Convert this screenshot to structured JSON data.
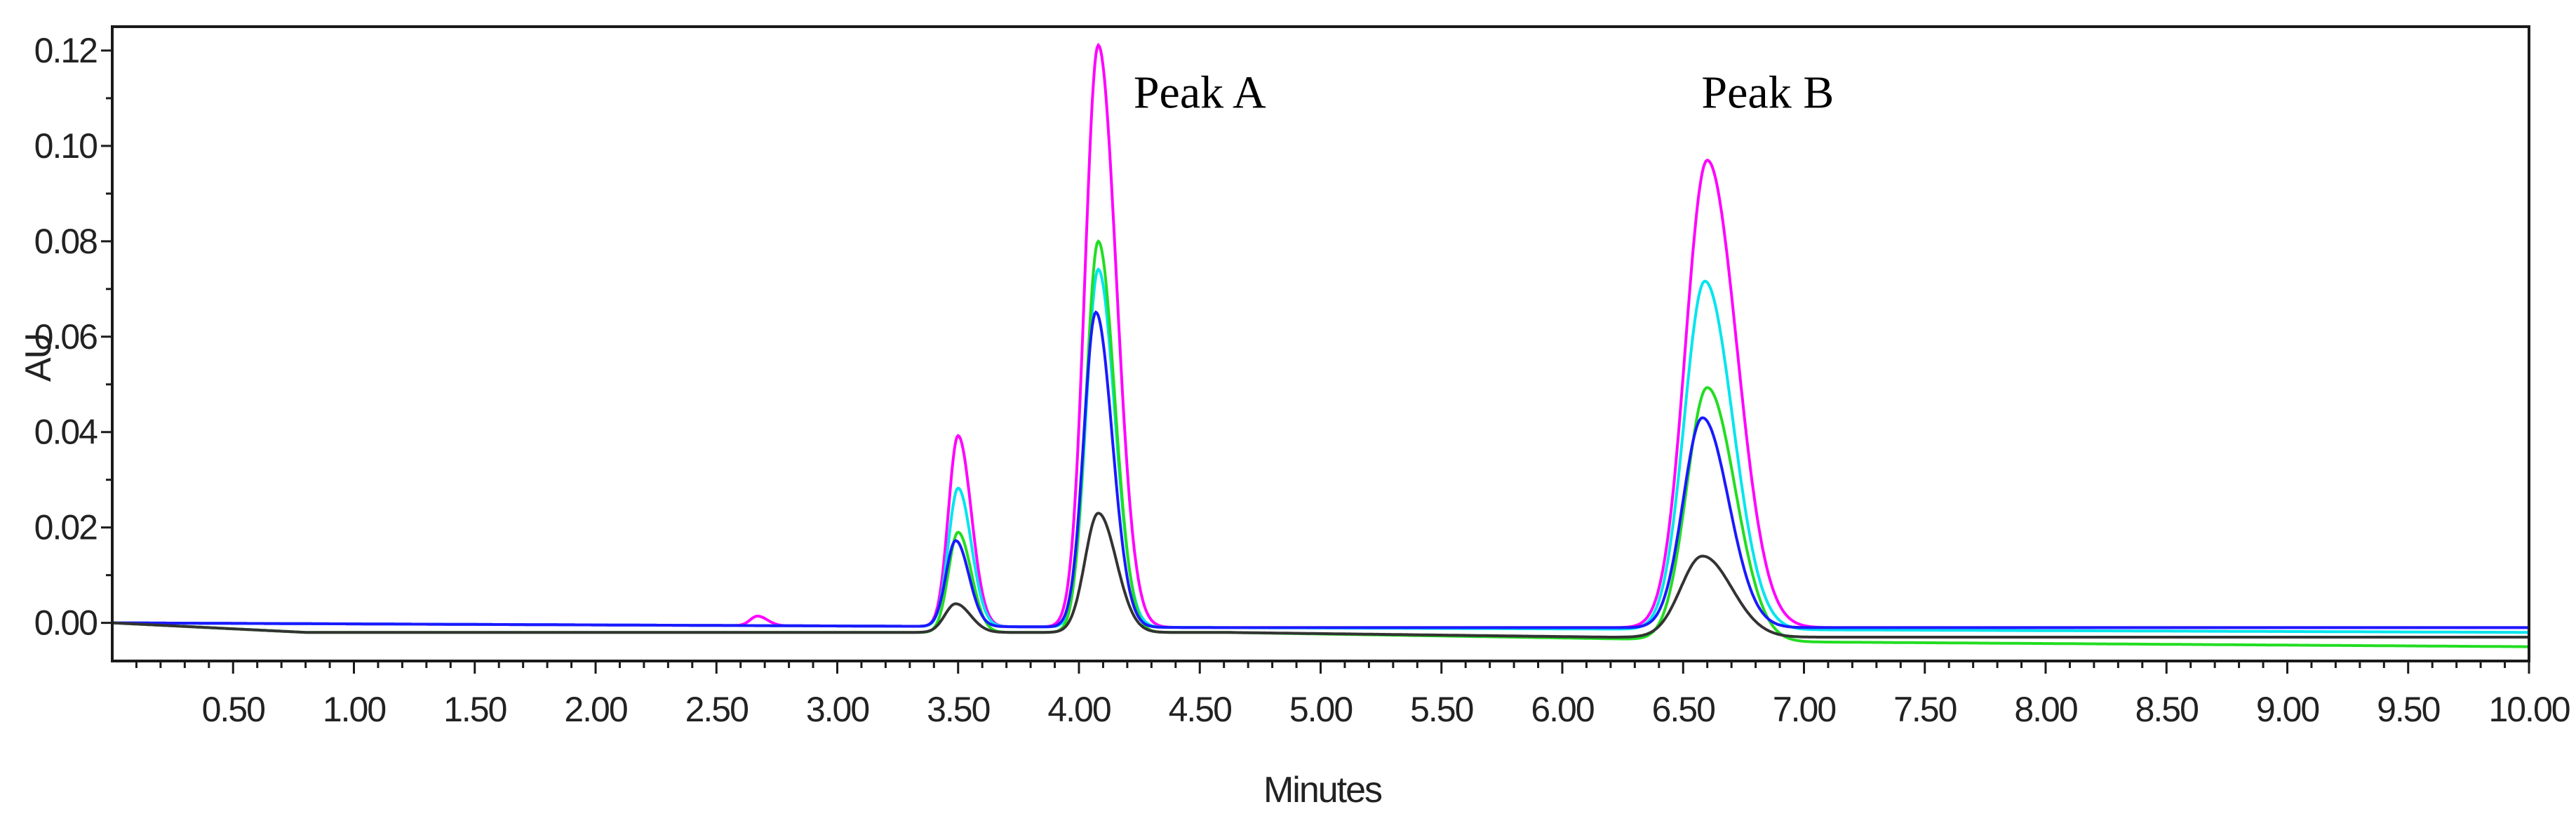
{
  "chart_data": {
    "type": "line",
    "title": "",
    "xlabel": "Minutes",
    "ylabel": "AU",
    "xlim": [
      0.0,
      10.0
    ],
    "ylim": [
      -0.008,
      0.125
    ],
    "x_ticks": [
      "0.50",
      "1.00",
      "1.50",
      "2.00",
      "2.50",
      "3.00",
      "3.50",
      "4.00",
      "4.50",
      "5.00",
      "5.50",
      "6.00",
      "6.50",
      "7.00",
      "7.50",
      "8.00",
      "8.50",
      "9.00",
      "9.50",
      "10.00"
    ],
    "y_ticks": [
      "0.00",
      "0.02",
      "0.04",
      "0.06",
      "0.08",
      "0.10",
      "0.12"
    ],
    "grid": false,
    "annotations": [
      {
        "text": "Peak A",
        "x": 4.5,
        "y": 0.108
      },
      {
        "text": "Peak B",
        "x": 6.85,
        "y": 0.108
      }
    ],
    "series": [
      {
        "color": "#ff00ff",
        "baseline": [
          [
            0,
            0
          ],
          [
            4.6,
            -0.001
          ],
          [
            10,
            -0.001
          ]
        ],
        "peaks": [
          {
            "x": 2.67,
            "h": 0.002,
            "w": 0.03
          },
          {
            "x": 3.5,
            "h": 0.04,
            "w": 0.04
          },
          {
            "x": 4.08,
            "h": 0.122,
            "w": 0.055
          },
          {
            "x": 6.6,
            "h": 0.098,
            "w": 0.09
          }
        ],
        "values_at": {
          "x": [
            3.5,
            4.08,
            6.6
          ],
          "y": [
            0.04,
            0.121,
            0.097
          ]
        }
      },
      {
        "color": "#00e5ee",
        "baseline": [
          [
            0,
            0
          ],
          [
            4.6,
            -0.001
          ],
          [
            10,
            -0.002
          ]
        ],
        "peaks": [
          {
            "x": 3.5,
            "h": 0.029,
            "w": 0.04
          },
          {
            "x": 4.08,
            "h": 0.075,
            "w": 0.05
          },
          {
            "x": 6.59,
            "h": 0.073,
            "w": 0.085
          }
        ],
        "values_at": {
          "x": [
            3.5,
            4.08,
            6.59
          ],
          "y": [
            0.028,
            0.074,
            0.072
          ]
        }
      },
      {
        "color": "#22dd22",
        "baseline": [
          [
            0,
            0
          ],
          [
            0.8,
            -0.002
          ],
          [
            4.6,
            -0.002
          ],
          [
            7,
            -0.004
          ],
          [
            10,
            -0.005
          ]
        ],
        "peaks": [
          {
            "x": 3.5,
            "h": 0.021,
            "w": 0.04
          },
          {
            "x": 4.08,
            "h": 0.082,
            "w": 0.05
          },
          {
            "x": 6.6,
            "h": 0.053,
            "w": 0.085
          }
        ],
        "values_at": {
          "x": [
            3.5,
            4.08,
            6.6
          ],
          "y": [
            0.02,
            0.08,
            0.049
          ]
        }
      },
      {
        "color": "#1a1aff",
        "baseline": [
          [
            0,
            0
          ],
          [
            4.6,
            -0.001
          ],
          [
            10,
            -0.001
          ]
        ],
        "peaks": [
          {
            "x": 3.49,
            "h": 0.018,
            "w": 0.04
          },
          {
            "x": 4.07,
            "h": 0.066,
            "w": 0.05
          },
          {
            "x": 6.58,
            "h": 0.044,
            "w": 0.08
          }
        ],
        "values_at": {
          "x": [
            3.49,
            4.07,
            6.58
          ],
          "y": [
            0.017,
            0.065,
            0.043
          ]
        }
      },
      {
        "color": "#333333",
        "baseline": [
          [
            0,
            0
          ],
          [
            0.8,
            -0.002
          ],
          [
            4.6,
            -0.002
          ],
          [
            6.2,
            -0.003
          ],
          [
            10,
            -0.003
          ]
        ],
        "peaks": [
          {
            "x": 3.49,
            "h": 0.006,
            "w": 0.045
          },
          {
            "x": 4.08,
            "h": 0.025,
            "w": 0.055
          },
          {
            "x": 6.58,
            "h": 0.017,
            "w": 0.09
          }
        ],
        "values_at": {
          "x": [
            3.49,
            4.08,
            6.58
          ],
          "y": [
            0.005,
            0.023,
            0.014
          ]
        }
      }
    ]
  }
}
